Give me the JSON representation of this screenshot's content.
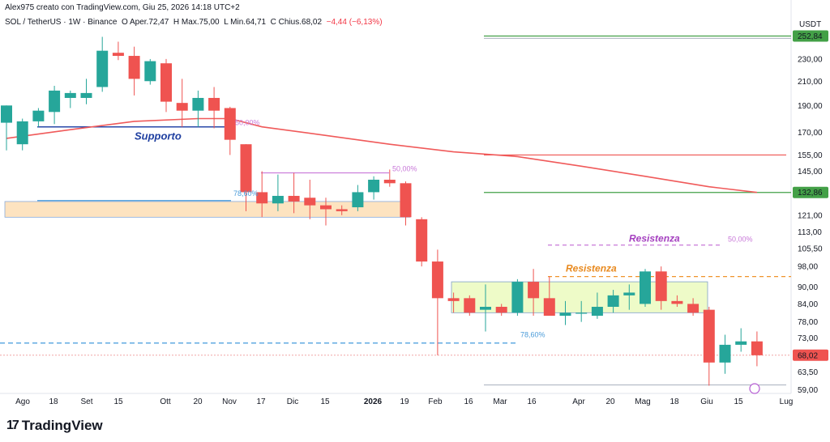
{
  "header": {
    "text": "Alex975 creato con TradingView.com, Giu 25, 2026 14:18 UTC+2"
  },
  "legend": {
    "symbol": "SOL / TetherUS · 1W · Binance",
    "open_label": "O",
    "open": "Aper.72,47",
    "high_label": "H",
    "high": "Max.75,00",
    "low_label": "L",
    "low": "Min.64,71",
    "close_label": "C",
    "close": "Chius.68,02",
    "change": "−4,44 (−6,13%)"
  },
  "colors": {
    "up": "#26a69a",
    "down": "#ef5350",
    "ma": "#f05a5a",
    "support": "#2948a8",
    "resist_orange": "#f0932b",
    "resist_purple": "#a64dc8",
    "fib_blue": "#4a9bd9",
    "fib_purple": "#c878d8",
    "green_line": "#43a047",
    "zone_orange": "#fde3c0",
    "zone_green": "#eefbc8",
    "blue_dash": "#2962ff"
  },
  "brand": {
    "name": "TradingView"
  },
  "chart_data": {
    "type": "candlestick",
    "symbol": "SOL/USDT",
    "timeframe": "1W",
    "y_unit": "USDT",
    "y_scale": "log",
    "y_ticks": [
      252.84,
      230.0,
      210.0,
      190.0,
      170.0,
      155.0,
      145.0,
      132.86,
      121.0,
      113.0,
      105.5,
      98.0,
      90.0,
      84.0,
      78.0,
      73.0,
      68.02,
      63.5,
      59.0
    ],
    "y_tick_labels": [
      "252,84",
      "230,00",
      "210,00",
      "190,00",
      "170,00",
      "155,00",
      "145,00",
      "132,86",
      "121,00",
      "113,00",
      "105,50",
      "98,00",
      "90,00",
      "84,00",
      "78,00",
      "73,00",
      "68,02",
      "63,50",
      "59,00"
    ],
    "highlighted_prices": [
      252.84,
      132.86,
      68.02
    ],
    "x_ticks": [
      "Ago",
      "18",
      "Set",
      "15",
      "Ott",
      "20",
      "Nov",
      "17",
      "Dic",
      "15",
      "2026",
      "19",
      "Feb",
      "16",
      "Mar",
      "16",
      "Apr",
      "20",
      "Mag",
      "18",
      "Giu",
      "15",
      "Lug"
    ],
    "candles": [
      {
        "o": 177,
        "h": 190,
        "l": 158,
        "c": 190
      },
      {
        "o": 162,
        "h": 180,
        "l": 158,
        "c": 178
      },
      {
        "o": 178,
        "h": 188,
        "l": 174,
        "c": 186
      },
      {
        "o": 185,
        "h": 206,
        "l": 176,
        "c": 202
      },
      {
        "o": 196,
        "h": 202,
        "l": 188,
        "c": 200
      },
      {
        "o": 196,
        "h": 212,
        "l": 191,
        "c": 200
      },
      {
        "o": 205,
        "h": 252,
        "l": 201,
        "c": 238
      },
      {
        "o": 236,
        "h": 247,
        "l": 229,
        "c": 233
      },
      {
        "o": 233,
        "h": 242,
        "l": 198,
        "c": 212
      },
      {
        "o": 210,
        "h": 230,
        "l": 207,
        "c": 228
      },
      {
        "o": 226,
        "h": 230,
        "l": 185,
        "c": 193
      },
      {
        "o": 192,
        "h": 212,
        "l": 174,
        "c": 186
      },
      {
        "o": 186,
        "h": 202,
        "l": 174,
        "c": 196
      },
      {
        "o": 196,
        "h": 205,
        "l": 173,
        "c": 186
      },
      {
        "o": 188,
        "h": 189,
        "l": 155,
        "c": 165
      },
      {
        "o": 162,
        "h": 162,
        "l": 123,
        "c": 133
      },
      {
        "o": 133,
        "h": 145,
        "l": 120,
        "c": 127
      },
      {
        "o": 127,
        "h": 143,
        "l": 123,
        "c": 131
      },
      {
        "o": 131,
        "h": 144,
        "l": 122,
        "c": 128
      },
      {
        "o": 130,
        "h": 140,
        "l": 119,
        "c": 126
      },
      {
        "o": 126,
        "h": 130,
        "l": 116,
        "c": 124
      },
      {
        "o": 124,
        "h": 126,
        "l": 121,
        "c": 123
      },
      {
        "o": 125,
        "h": 137,
        "l": 123,
        "c": 133
      },
      {
        "o": 133,
        "h": 142,
        "l": 129,
        "c": 140
      },
      {
        "o": 140,
        "h": 146,
        "l": 136,
        "c": 138
      },
      {
        "o": 138,
        "h": 139,
        "l": 116,
        "c": 120
      },
      {
        "o": 119,
        "h": 120,
        "l": 98,
        "c": 100
      },
      {
        "o": 100,
        "h": 105,
        "l": 68,
        "c": 86
      },
      {
        "o": 86,
        "h": 88,
        "l": 81,
        "c": 85
      },
      {
        "o": 86,
        "h": 87,
        "l": 80,
        "c": 81
      },
      {
        "o": 82,
        "h": 91,
        "l": 75,
        "c": 83
      },
      {
        "o": 83,
        "h": 84,
        "l": 80,
        "c": 81
      },
      {
        "o": 81,
        "h": 93,
        "l": 80,
        "c": 92
      },
      {
        "o": 92,
        "h": 97,
        "l": 80,
        "c": 86
      },
      {
        "o": 86,
        "h": 94,
        "l": 81,
        "c": 80
      },
      {
        "o": 80,
        "h": 85,
        "l": 77,
        "c": 81
      },
      {
        "o": 81,
        "h": 85,
        "l": 78,
        "c": 81
      },
      {
        "o": 80,
        "h": 88,
        "l": 79,
        "c": 83
      },
      {
        "o": 83,
        "h": 89,
        "l": 81,
        "c": 87
      },
      {
        "o": 87,
        "h": 91,
        "l": 82,
        "c": 88
      },
      {
        "o": 84,
        "h": 97,
        "l": 83,
        "c": 96
      },
      {
        "o": 96,
        "h": 98,
        "l": 82,
        "c": 85
      },
      {
        "o": 85,
        "h": 87,
        "l": 83,
        "c": 84
      },
      {
        "o": 84,
        "h": 86,
        "l": 80,
        "c": 81
      },
      {
        "o": 82,
        "h": 83,
        "l": 60,
        "c": 66
      },
      {
        "o": 66,
        "h": 74,
        "l": 63,
        "c": 71
      },
      {
        "o": 71,
        "h": 76,
        "l": 69,
        "c": 72
      },
      {
        "o": 72,
        "h": 75,
        "l": 65,
        "c": 68
      }
    ],
    "moving_average": [
      {
        "t": 0,
        "v": 166
      },
      {
        "t": 4,
        "v": 172
      },
      {
        "t": 8,
        "v": 178
      },
      {
        "t": 12,
        "v": 180
      },
      {
        "t": 14,
        "v": 180
      },
      {
        "t": 16,
        "v": 174
      },
      {
        "t": 20,
        "v": 168
      },
      {
        "t": 24,
        "v": 162
      },
      {
        "t": 28,
        "v": 157
      },
      {
        "t": 32,
        "v": 154
      },
      {
        "t": 36,
        "v": 148
      },
      {
        "t": 40,
        "v": 142
      },
      {
        "t": 44,
        "v": 136
      },
      {
        "t": 47,
        "v": 132.86
      }
    ],
    "annotations": [
      {
        "text": "Supporto",
        "price": 174
      },
      {
        "text": "Resistenza",
        "price": 107
      },
      {
        "text": "Resistenza",
        "price": 94
      },
      {
        "text": "78,60%",
        "price": 128
      },
      {
        "text": "78,60%",
        "price": 72
      },
      {
        "text": "50,00%",
        "price": 173
      },
      {
        "text": "50,00%",
        "price": 143
      },
      {
        "text": "50,00%",
        "price": 107
      }
    ],
    "zones": [
      {
        "name": "orange support zone",
        "from": 120,
        "to": 128
      },
      {
        "name": "green range box",
        "from": 81,
        "to": 92
      }
    ]
  }
}
